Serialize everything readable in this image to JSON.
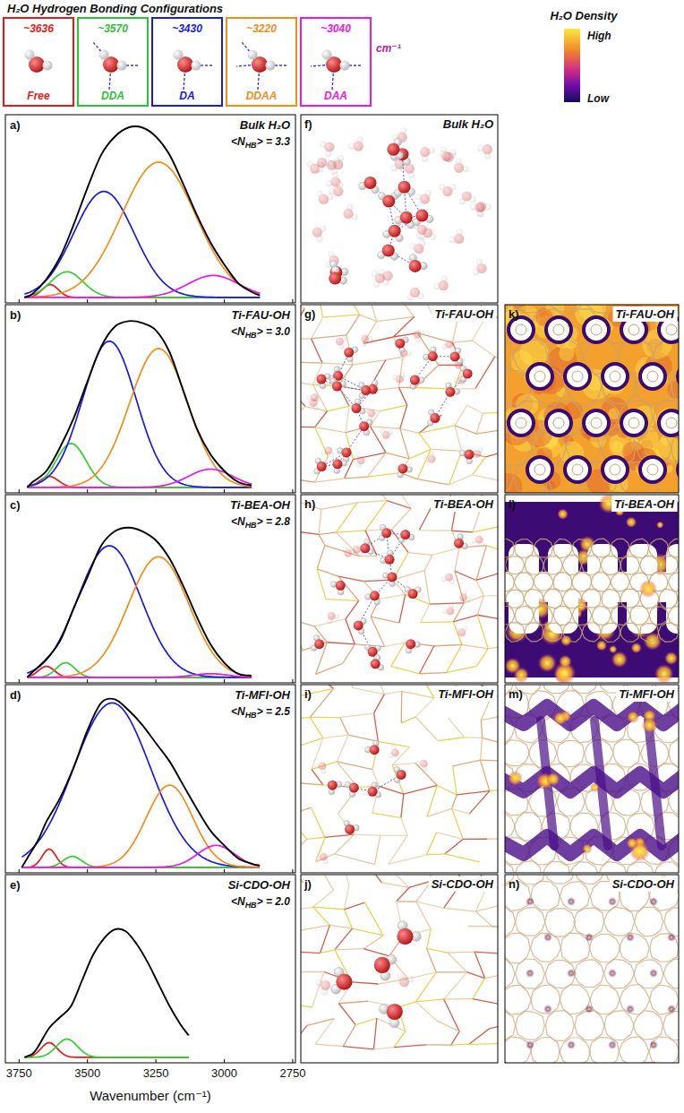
{
  "header": {
    "title": "H₂O Hydrogen Bonding Configurations",
    "unit": "cm⁻¹",
    "configs": [
      {
        "name": "Free",
        "wavenumber": {
          "value": 3636,
          "label": "~3636"
        },
        "color": "#e31a1c"
      },
      {
        "name": "DDA",
        "wavenumber": {
          "value": 3570,
          "label": "~3570"
        },
        "color": "#2fbf3a"
      },
      {
        "name": "DA",
        "wavenumber": {
          "value": 3430,
          "label": "~3430"
        },
        "color": "#1a1ae6"
      },
      {
        "name": "DDAA",
        "wavenumber": {
          "value": 3220,
          "label": "~3220"
        },
        "color": "#f28c1a"
      },
      {
        "name": "DAA",
        "wavenumber": {
          "value": 3040,
          "label": "~3040"
        },
        "color": "#e61ae6"
      }
    ]
  },
  "colorbar": {
    "title": "H₂O Density",
    "high": "High",
    "low": "Low"
  },
  "chart_data": [
    {
      "type": "line",
      "letter": "a)",
      "title": "Bulk H₂O",
      "nhb_label": [
        "<N",
        "HB",
        "> = "
      ],
      "nhb": {
        "value": 3.3,
        "label": "3.3"
      },
      "xlim": [
        3800,
        2740
      ],
      "xticks": [
        3750,
        3500,
        3250,
        3000,
        2750
      ],
      "ylim": [
        -0.03,
        1
      ],
      "tick_labels": false,
      "series": [
        {
          "name": "Free",
          "color": "#e31a1c",
          "center": 3636,
          "height": 0.07,
          "fwhm": 70
        },
        {
          "name": "DDA",
          "color": "#33cc33",
          "center": 3575,
          "height": 0.14,
          "fwhm": 140
        },
        {
          "name": "DA",
          "color": "#1a1ae6",
          "center": 3440,
          "height": 0.58,
          "fwhm": 260
        },
        {
          "name": "DDAA",
          "color": "#f28c1a",
          "center": 3240,
          "height": 0.74,
          "fwhm": 320
        },
        {
          "name": "DAA",
          "color": "#e61ae6",
          "center": 3040,
          "height": 0.12,
          "fwhm": 220
        }
      ],
      "fit": {
        "color": "#000000",
        "x": [
          3730,
          3700,
          3650,
          3600,
          3550,
          3500,
          3450,
          3400,
          3350,
          3300,
          3250,
          3200,
          3150,
          3100,
          3050,
          3000,
          2950,
          2900,
          2870
        ],
        "values": [
          0,
          0.02,
          0.1,
          0.22,
          0.4,
          0.6,
          0.78,
          0.88,
          0.93,
          0.93,
          0.88,
          0.78,
          0.62,
          0.45,
          0.3,
          0.18,
          0.08,
          0.03,
          0.01
        ]
      }
    },
    {
      "type": "line",
      "letter": "b)",
      "title": "Ti-FAU-OH",
      "nhb_label": [
        "<N",
        "HB",
        "> = "
      ],
      "nhb": {
        "value": 3.0,
        "label": "3.0"
      },
      "xlim": [
        3800,
        2740
      ],
      "xticks": [
        3750,
        3500,
        3250,
        3000,
        2750
      ],
      "ylim": [
        -0.03,
        1
      ],
      "tick_labels": false,
      "series": [
        {
          "name": "Free",
          "color": "#e31a1c",
          "center": 3640,
          "height": 0.06,
          "fwhm": 80
        },
        {
          "name": "DDA",
          "color": "#33cc33",
          "center": 3560,
          "height": 0.24,
          "fwhm": 130
        },
        {
          "name": "DA",
          "color": "#1a1ae6",
          "center": 3420,
          "height": 0.8,
          "fwhm": 230
        },
        {
          "name": "DDAA",
          "color": "#f28c1a",
          "center": 3240,
          "height": 0.76,
          "fwhm": 250
        },
        {
          "name": "DAA",
          "color": "#e61ae6",
          "center": 3050,
          "height": 0.1,
          "fwhm": 190
        }
      ],
      "fit": {
        "color": "#000000",
        "x": [
          3720,
          3700,
          3650,
          3600,
          3550,
          3500,
          3450,
          3400,
          3350,
          3300,
          3250,
          3200,
          3150,
          3100,
          3050,
          3000,
          2950,
          2900
        ],
        "values": [
          0,
          0.03,
          0.09,
          0.22,
          0.38,
          0.58,
          0.77,
          0.88,
          0.91,
          0.9,
          0.86,
          0.74,
          0.53,
          0.32,
          0.18,
          0.09,
          0.03,
          0.01
        ]
      }
    },
    {
      "type": "line",
      "letter": "c)",
      "title": "Ti-BEA-OH",
      "nhb_label": [
        "<N",
        "HB",
        "> = "
      ],
      "nhb": {
        "value": 2.8,
        "label": "2.8"
      },
      "xlim": [
        3800,
        2740
      ],
      "xticks": [
        3750,
        3500,
        3250,
        3000,
        2750
      ],
      "ylim": [
        -0.03,
        1
      ],
      "tick_labels": false,
      "series": [
        {
          "name": "Free",
          "color": "#e31a1c",
          "center": 3650,
          "height": 0.06,
          "fwhm": 70
        },
        {
          "name": "DDA",
          "color": "#33cc33",
          "center": 3580,
          "height": 0.08,
          "fwhm": 80
        },
        {
          "name": "DA",
          "color": "#1a1ae6",
          "center": 3420,
          "height": 0.72,
          "fwhm": 270
        },
        {
          "name": "DDAA",
          "color": "#f28c1a",
          "center": 3240,
          "height": 0.66,
          "fwhm": 260
        },
        {
          "name": "DAA",
          "color": "#e61ae6",
          "center": 3050,
          "height": 0.02,
          "fwhm": 150
        }
      ],
      "fit": {
        "color": "#000000",
        "x": [
          3720,
          3700,
          3650,
          3600,
          3550,
          3500,
          3450,
          3400,
          3350,
          3300,
          3250,
          3200,
          3150,
          3100,
          3050,
          3000,
          2950,
          2900
        ],
        "values": [
          0,
          0.03,
          0.1,
          0.2,
          0.38,
          0.55,
          0.72,
          0.8,
          0.82,
          0.8,
          0.75,
          0.65,
          0.5,
          0.33,
          0.18,
          0.08,
          0.02,
          0.01
        ]
      }
    },
    {
      "type": "line",
      "letter": "d)",
      "title": "Ti-MFI-OH",
      "nhb_label": [
        "<N",
        "HB",
        "> = "
      ],
      "nhb": {
        "value": 2.5,
        "label": "2.5"
      },
      "xlim": [
        3800,
        2740
      ],
      "xticks": [
        3750,
        3500,
        3250,
        3000,
        2750
      ],
      "ylim": [
        -0.03,
        1
      ],
      "tick_labels": false,
      "series": [
        {
          "name": "Free",
          "color": "#e31a1c",
          "center": 3640,
          "height": 0.1,
          "fwhm": 60
        },
        {
          "name": "DDA",
          "color": "#33cc33",
          "center": 3555,
          "height": 0.06,
          "fwhm": 80
        },
        {
          "name": "DA",
          "color": "#1a1ae6",
          "center": 3410,
          "height": 0.9,
          "fwhm": 330
        },
        {
          "name": "DDAA",
          "color": "#f28c1a",
          "center": 3200,
          "height": 0.45,
          "fwhm": 200
        },
        {
          "name": "DAA",
          "color": "#e61ae6",
          "center": 3030,
          "height": 0.12,
          "fwhm": 160
        }
      ],
      "fit": {
        "color": "#000000",
        "x": [
          3740,
          3720,
          3680,
          3650,
          3600,
          3550,
          3500,
          3450,
          3400,
          3350,
          3300,
          3250,
          3200,
          3150,
          3100,
          3050,
          3000,
          2950,
          2900,
          2870
        ],
        "values": [
          0,
          0.05,
          0.15,
          0.25,
          0.38,
          0.55,
          0.75,
          0.9,
          0.92,
          0.86,
          0.78,
          0.68,
          0.58,
          0.45,
          0.32,
          0.2,
          0.12,
          0.05,
          0.02,
          0.01
        ]
      }
    },
    {
      "type": "line",
      "letter": "e)",
      "title": "Si-CDO-OH",
      "nhb_label": [
        "<N",
        "HB",
        "> = "
      ],
      "nhb": {
        "value": 2.0,
        "label": "2.0"
      },
      "xlim": [
        3800,
        2740
      ],
      "xticks": [
        3750,
        3500,
        3250,
        3000,
        2750
      ],
      "ylim": [
        -0.03,
        1
      ],
      "tick_labels": "x",
      "x_label": "Wavenumber (cm⁻¹)",
      "series": [
        {
          "name": "Free",
          "color": "#e31a1c",
          "center": 3640,
          "height": 0.08,
          "fwhm": 70
        },
        {
          "name": "DDA",
          "color": "#33cc33",
          "center": 3575,
          "height": 0.1,
          "fwhm": 90
        }
      ],
      "fit": {
        "color": "#000000",
        "x": [
          3730,
          3700,
          3680,
          3640,
          3600,
          3560,
          3520,
          3480,
          3440,
          3400,
          3360,
          3320,
          3280,
          3240,
          3200,
          3160,
          3130
        ],
        "values": [
          0,
          0.02,
          0.06,
          0.16,
          0.22,
          0.28,
          0.42,
          0.56,
          0.65,
          0.7,
          0.69,
          0.62,
          0.52,
          0.4,
          0.28,
          0.18,
          0.12
        ]
      }
    }
  ],
  "snapshots": [
    {
      "letter": "f)",
      "title": "Bulk H₂O"
    },
    {
      "letter": "g)",
      "title": "Ti-FAU-OH"
    },
    {
      "letter": "h)",
      "title": "Ti-BEA-OH"
    },
    {
      "letter": "i)",
      "title": "Ti-MFI-OH"
    },
    {
      "letter": "j)",
      "title": "Si-CDO-OH"
    }
  ],
  "density_maps": [
    {
      "letter": "k)",
      "title": "Ti-FAU-OH"
    },
    {
      "letter": "l)",
      "title": "Ti-BEA-OH"
    },
    {
      "letter": "m)",
      "title": "Ti-MFI-OH"
    },
    {
      "letter": "n)",
      "title": "Si-CDO-OH"
    }
  ]
}
